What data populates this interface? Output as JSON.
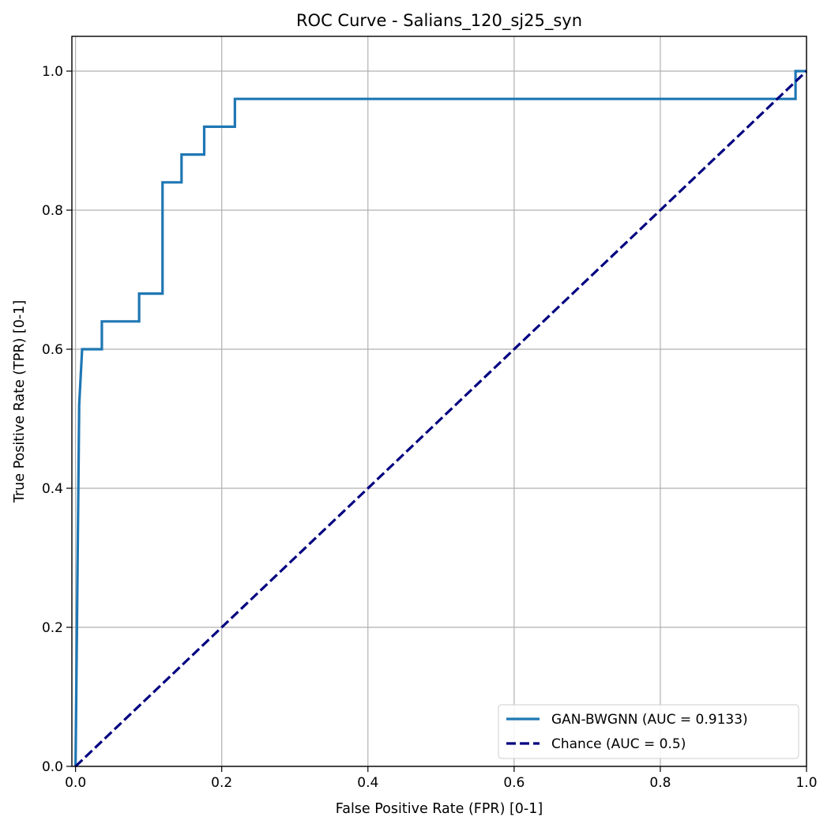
{
  "chart_data": {
    "type": "line",
    "title": "ROC Curve - Salians_120_sj25_syn",
    "xlabel": "False Positive Rate (FPR) [0-1]",
    "ylabel": "True Positive Rate (TPR) [0-1]",
    "xlim": [
      -0.005,
      1.0
    ],
    "ylim": [
      0.0,
      1.05
    ],
    "x_ticks": [
      "0.0",
      "0.2",
      "0.4",
      "0.6",
      "0.8",
      "1.0"
    ],
    "y_ticks": [
      "0.0",
      "0.2",
      "0.4",
      "0.6",
      "0.8",
      "1.0"
    ],
    "grid": true,
    "legend_position": "lower-right",
    "series": [
      {
        "name": "GAN-BWGNN (AUC = 0.9133)",
        "color": "#1f77b4",
        "style": "solid",
        "x": [
          0.0,
          0.0,
          0.005,
          0.005,
          0.007,
          0.007,
          0.009,
          0.009,
          0.036,
          0.036,
          0.087,
          0.087,
          0.119,
          0.119,
          0.145,
          0.145,
          0.176,
          0.176,
          0.218,
          0.218,
          0.985,
          0.985,
          1.0
        ],
        "y": [
          0.0,
          0.0,
          0.52,
          0.52,
          0.56,
          0.56,
          0.6,
          0.6,
          0.6,
          0.64,
          0.64,
          0.68,
          0.68,
          0.84,
          0.84,
          0.88,
          0.88,
          0.92,
          0.92,
          0.96,
          0.96,
          1.0,
          1.0
        ]
      },
      {
        "name": "Chance (AUC = 0.5)",
        "color": "#000080",
        "style": "dashed",
        "x": [
          0.0,
          1.0
        ],
        "y": [
          0.0,
          1.0
        ]
      }
    ]
  }
}
